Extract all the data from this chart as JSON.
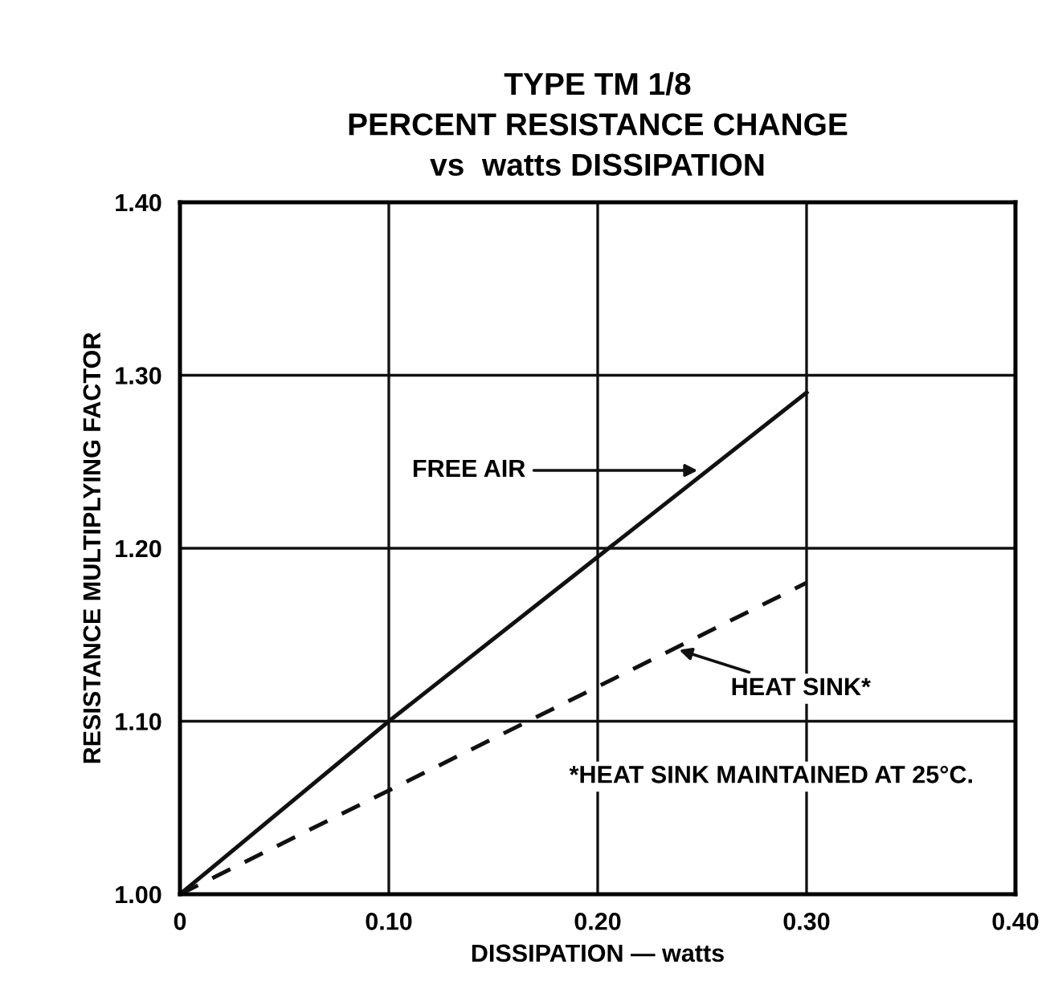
{
  "chart_data": {
    "type": "line",
    "title": "TYPE TM 1/8\nPERCENT RESISTANCE CHANGE\nvs  watts DISSIPATION",
    "xlabel": "DISSIPATION — watts",
    "ylabel": "RESISTANCE MULTIPLYING FACTOR",
    "series": [
      {
        "color": "#111111",
        "line_style": "solid",
        "x": [
          0,
          0.1,
          0.2,
          0.3
        ],
        "values": [
          1.0,
          1.1,
          1.195,
          1.29
        ]
      },
      {
        "color": "#111111",
        "line_style": "dashed",
        "x": [
          0,
          0.1,
          0.2,
          0.3
        ],
        "values": [
          1.0,
          1.06,
          1.12,
          1.18
        ]
      }
    ],
    "annotations": [
      {
        "text": "FREE AIR",
        "x": 0.25,
        "y": 1.245
      },
      {
        "text": "HEAT SINK*",
        "x": 0.237,
        "y": 1.142
      },
      "*HEAT SINK MAINTAINED AT 25°C."
    ],
    "xlim": [
      0,
      0.4
    ],
    "ylim": [
      1.0,
      1.4
    ],
    "xticks": [
      0,
      {
        "value": 0.1,
        "label": "0.10"
      },
      {
        "value": 0.2,
        "label": "0.20"
      },
      {
        "value": 0.3,
        "label": "0.30"
      },
      {
        "value": 0.4,
        "label": "0.40"
      }
    ],
    "yticks": [
      {
        "value": 1.0,
        "label": "1.00"
      },
      {
        "value": 1.1,
        "label": "1.10"
      },
      {
        "value": 1.2,
        "label": "1.20"
      },
      {
        "value": 1.3,
        "label": "1.30"
      },
      {
        "value": 1.4,
        "label": "1.40"
      }
    ],
    "grid": true,
    "legend": false
  }
}
